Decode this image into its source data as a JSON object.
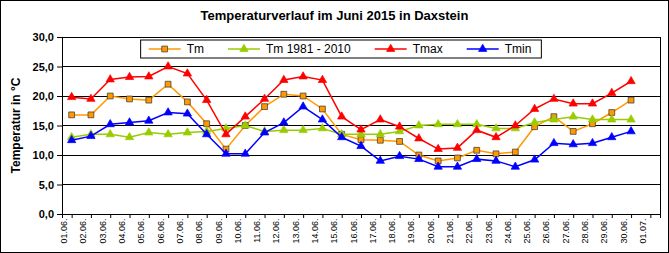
{
  "chart_data": {
    "type": "line",
    "title": "Temperaturverlauf im Juni 2015 in Daxstein",
    "y_label": "Temperatur in °C",
    "categories": [
      "01.06.",
      "02.06.",
      "03.06.",
      "04.06.",
      "05.06.",
      "06.06.",
      "07.06.",
      "08.06.",
      "09.06.",
      "10.06.",
      "11.06.",
      "12.06.",
      "13.06.",
      "14.06.",
      "15.06.",
      "16.06.",
      "17.06.",
      "18.06.",
      "19.06.",
      "20.06.",
      "21.06.",
      "22.06.",
      "23.06.",
      "24.06.",
      "25.06.",
      "26.06.",
      "27.06.",
      "28.06.",
      "29.06.",
      "30.06.",
      "01.07."
    ],
    "series": [
      {
        "name": "Tm",
        "color": "#ff9900",
        "marker": "square",
        "line_style": "solid",
        "values": [
          16.8,
          16.8,
          20.0,
          19.5,
          19.3,
          22.0,
          19.0,
          15.3,
          11.0,
          15.0,
          18.2,
          20.3,
          20.0,
          17.8,
          13.5,
          12.6,
          12.5,
          12.3,
          10.0,
          9.0,
          9.5,
          10.8,
          10.2,
          10.5,
          14.8,
          16.5,
          14.0,
          15.3,
          17.2,
          19.3,
          null
        ]
      },
      {
        "name": "Tm 1981 - 2010",
        "color": "#99cc00",
        "marker": "triangle",
        "line_style": "solid",
        "values": [
          13.0,
          13.5,
          13.5,
          13.0,
          13.8,
          13.5,
          13.8,
          14.0,
          14.5,
          15.0,
          14.0,
          14.2,
          14.2,
          14.5,
          13.5,
          13.5,
          13.5,
          14.0,
          15.0,
          15.2,
          15.2,
          15.2,
          14.5,
          14.5,
          15.5,
          16.0,
          16.5,
          16.0,
          16.0,
          16.0,
          null
        ]
      },
      {
        "name": "Tmax",
        "color": "#ff0000",
        "marker": "triangle",
        "line_style": "solid",
        "values": [
          19.8,
          19.5,
          22.8,
          23.2,
          23.3,
          25.0,
          23.8,
          19.3,
          13.5,
          16.5,
          19.5,
          22.7,
          23.3,
          22.7,
          16.5,
          14.3,
          16.0,
          14.8,
          12.8,
          11.0,
          11.2,
          14.2,
          13.0,
          15.0,
          17.8,
          19.5,
          18.7,
          18.7,
          20.5,
          22.5,
          null
        ]
      },
      {
        "name": "Tmin",
        "color": "#0000ff",
        "marker": "triangle",
        "line_style": "solid",
        "values": [
          12.5,
          13.2,
          15.2,
          15.5,
          15.8,
          17.2,
          17.0,
          13.5,
          10.2,
          10.2,
          13.8,
          15.5,
          18.2,
          16.0,
          13.0,
          11.5,
          9.0,
          9.8,
          9.3,
          8.0,
          8.0,
          9.3,
          9.0,
          8.0,
          9.2,
          12.0,
          11.8,
          12.0,
          13.0,
          14.0,
          null
        ]
      }
    ],
    "ylim": [
      0,
      30
    ],
    "yticks": [
      {
        "value": 0,
        "label": "0,0"
      },
      {
        "value": 5,
        "label": "5,0"
      },
      {
        "value": 10,
        "label": "10,0"
      },
      {
        "value": 15,
        "label": "15,0"
      },
      {
        "value": 20,
        "label": "20,0"
      },
      {
        "value": 25,
        "label": "25,0"
      },
      {
        "value": 30,
        "label": "30,0"
      }
    ],
    "grid": true,
    "legend": "top"
  }
}
